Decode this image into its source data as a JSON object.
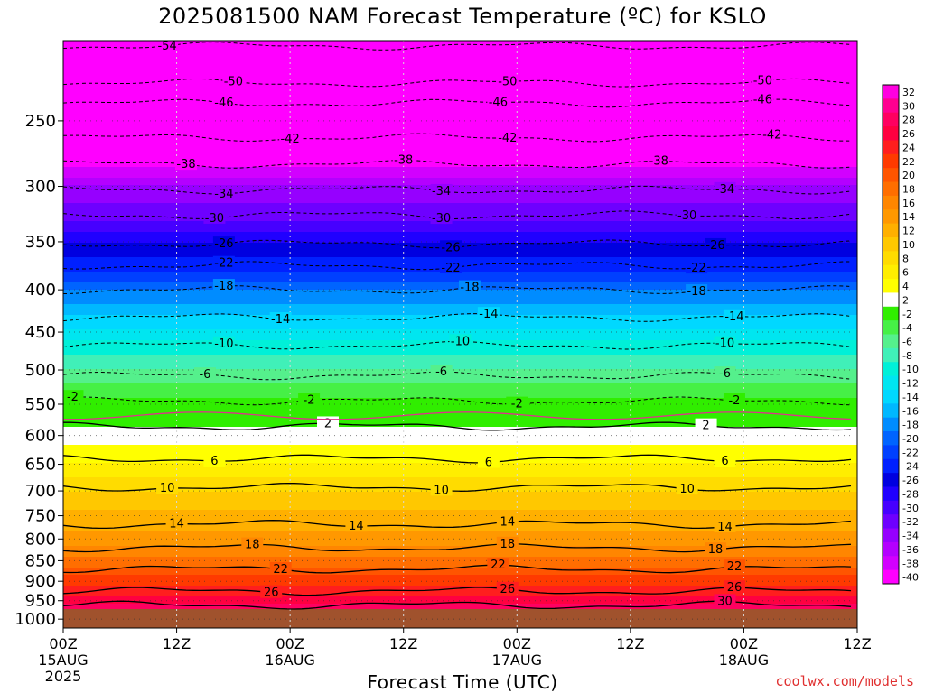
{
  "chart_data": {
    "type": "heatmap",
    "title": "2025081500 NAM Forecast Temperature (ºC) for KSLO",
    "xlabel": "Forecast Time (UTC)",
    "credit": "coolwx.com/models",
    "grid": true,
    "x_ticks": [
      {
        "label": "00Z",
        "date": "15AUG",
        "year": "2025",
        "hours": 0
      },
      {
        "label": "12Z",
        "date": "",
        "year": "",
        "hours": 12
      },
      {
        "label": "00Z",
        "date": "16AUG",
        "year": "",
        "hours": 24
      },
      {
        "label": "12Z",
        "date": "",
        "year": "",
        "hours": 36
      },
      {
        "label": "00Z",
        "date": "17AUG",
        "year": "",
        "hours": 48
      },
      {
        "label": "12Z",
        "date": "",
        "year": "",
        "hours": 60
      },
      {
        "label": "00Z",
        "date": "18AUG",
        "year": "",
        "hours": 72
      },
      {
        "label": "12Z",
        "date": "",
        "year": "",
        "hours": 84
      }
    ],
    "xlim": [
      0,
      84
    ],
    "ylabel_ticks": [
      250,
      300,
      350,
      400,
      450,
      500,
      550,
      600,
      650,
      700,
      750,
      800,
      850,
      900,
      950,
      1000
    ],
    "ylim": [
      200,
      1025
    ],
    "y_scale": "log-pressure",
    "colorbar": {
      "labels": [
        "32",
        "30",
        "28",
        "26",
        "24",
        "22",
        "20",
        "18",
        "16",
        "14",
        "12",
        "10",
        "8",
        "6",
        "4",
        "2",
        "-2",
        "-4",
        "-6",
        "-8",
        "-10",
        "-12",
        "-14",
        "-16",
        "-18",
        "-20",
        "-22",
        "-24",
        "-26",
        "-28",
        "-30",
        "-32",
        "-34",
        "-36",
        "-38",
        "-40"
      ],
      "colors": [
        "#ff00e0",
        "#ff0090",
        "#ff0060",
        "#ff0040",
        "#ff1e1e",
        "#ff3a00",
        "#ff5500",
        "#ff6e00",
        "#ff8600",
        "#ff9800",
        "#ffb000",
        "#ffc800",
        "#ffdc00",
        "#ffee00",
        "#ffff00",
        "#ffffff",
        "#30ee00",
        "#46f046",
        "#55f08c",
        "#40f0b8",
        "#00f0d8",
        "#00e6f0",
        "#00d8ff",
        "#00b8ff",
        "#008cff",
        "#0064ff",
        "#0040ff",
        "#0020ff",
        "#0000e0",
        "#2000ff",
        "#4600ff",
        "#6e00ff",
        "#9600ff",
        "#b400ff",
        "#d200ff",
        "#ff00ff"
      ]
    },
    "profile_celsius": [
      {
        "p": 200,
        "t": -55
      },
      {
        "p": 220,
        "t": -50
      },
      {
        "p": 250,
        "t": -44
      },
      {
        "p": 280,
        "t": -39
      },
      {
        "p": 300,
        "t": -34
      },
      {
        "p": 330,
        "t": -30
      },
      {
        "p": 350,
        "t": -26
      },
      {
        "p": 380,
        "t": -22
      },
      {
        "p": 400,
        "t": -18
      },
      {
        "p": 430,
        "t": -14
      },
      {
        "p": 460,
        "t": -10
      },
      {
        "p": 500,
        "t": -6
      },
      {
        "p": 530,
        "t": -3
      },
      {
        "p": 570,
        "t": 1
      },
      {
        "p": 600,
        "t": 3
      },
      {
        "p": 650,
        "t": 6
      },
      {
        "p": 700,
        "t": 10
      },
      {
        "p": 760,
        "t": 13
      },
      {
        "p": 800,
        "t": 15
      },
      {
        "p": 850,
        "t": 19
      },
      {
        "p": 900,
        "t": 23
      },
      {
        "p": 950,
        "t": 27
      },
      {
        "p": 1000,
        "t": 32
      }
    ],
    "contours": [
      {
        "value": -54,
        "p": 203,
        "label_x_hours": [
          11
        ]
      },
      {
        "value": -50,
        "p": 225,
        "label_x_hours": [
          18,
          47,
          74
        ]
      },
      {
        "value": -46,
        "p": 238,
        "label_x_hours": [
          17,
          46,
          74
        ]
      },
      {
        "value": -42,
        "p": 262,
        "label_x_hours": [
          24,
          47,
          75
        ]
      },
      {
        "value": -38,
        "p": 282,
        "label_x_hours": [
          13,
          36,
          63
        ]
      },
      {
        "value": -34,
        "p": 303,
        "label_x_hours": [
          17,
          40,
          70
        ]
      },
      {
        "value": -30,
        "p": 325,
        "label_x_hours": [
          16,
          40,
          66
        ]
      },
      {
        "value": -26,
        "p": 352,
        "label_x_hours": [
          17,
          41,
          69
        ]
      },
      {
        "value": -22,
        "p": 374,
        "label_x_hours": [
          17,
          41,
          67
        ]
      },
      {
        "value": -18,
        "p": 400,
        "label_x_hours": [
          17,
          43,
          67
        ]
      },
      {
        "value": -14,
        "p": 432,
        "label_x_hours": [
          23,
          45,
          71
        ]
      },
      {
        "value": -10,
        "p": 467,
        "label_x_hours": [
          17,
          42,
          70
        ]
      },
      {
        "value": -6,
        "p": 508,
        "label_x_hours": [
          15,
          40,
          70
        ]
      },
      {
        "value": -2,
        "p": 545,
        "label_x_hours": [
          1,
          26,
          48,
          71
        ]
      },
      {
        "value": 2,
        "p": 585,
        "label_x_hours": [
          28,
          68
        ]
      },
      {
        "value": 6,
        "p": 640,
        "label_x_hours": [
          16,
          45,
          70
        ]
      },
      {
        "value": 10,
        "p": 693,
        "label_x_hours": [
          11,
          40,
          66
        ]
      },
      {
        "value": 14,
        "p": 768,
        "label_x_hours": [
          12,
          31,
          47,
          70
        ]
      },
      {
        "value": 18,
        "p": 820,
        "label_x_hours": [
          20,
          47,
          69
        ]
      },
      {
        "value": 22,
        "p": 870,
        "label_x_hours": [
          23,
          46,
          71
        ]
      },
      {
        "value": 26,
        "p": 925,
        "label_x_hours": [
          22,
          47,
          71
        ]
      },
      {
        "value": 30,
        "p": 962,
        "label_x_hours": [
          70
        ]
      }
    ],
    "contour_style": {
      "negative": "dashed",
      "positive": "solid",
      "zero_crossing_color": "#e0308c"
    },
    "ground_color": "#a0522d"
  }
}
